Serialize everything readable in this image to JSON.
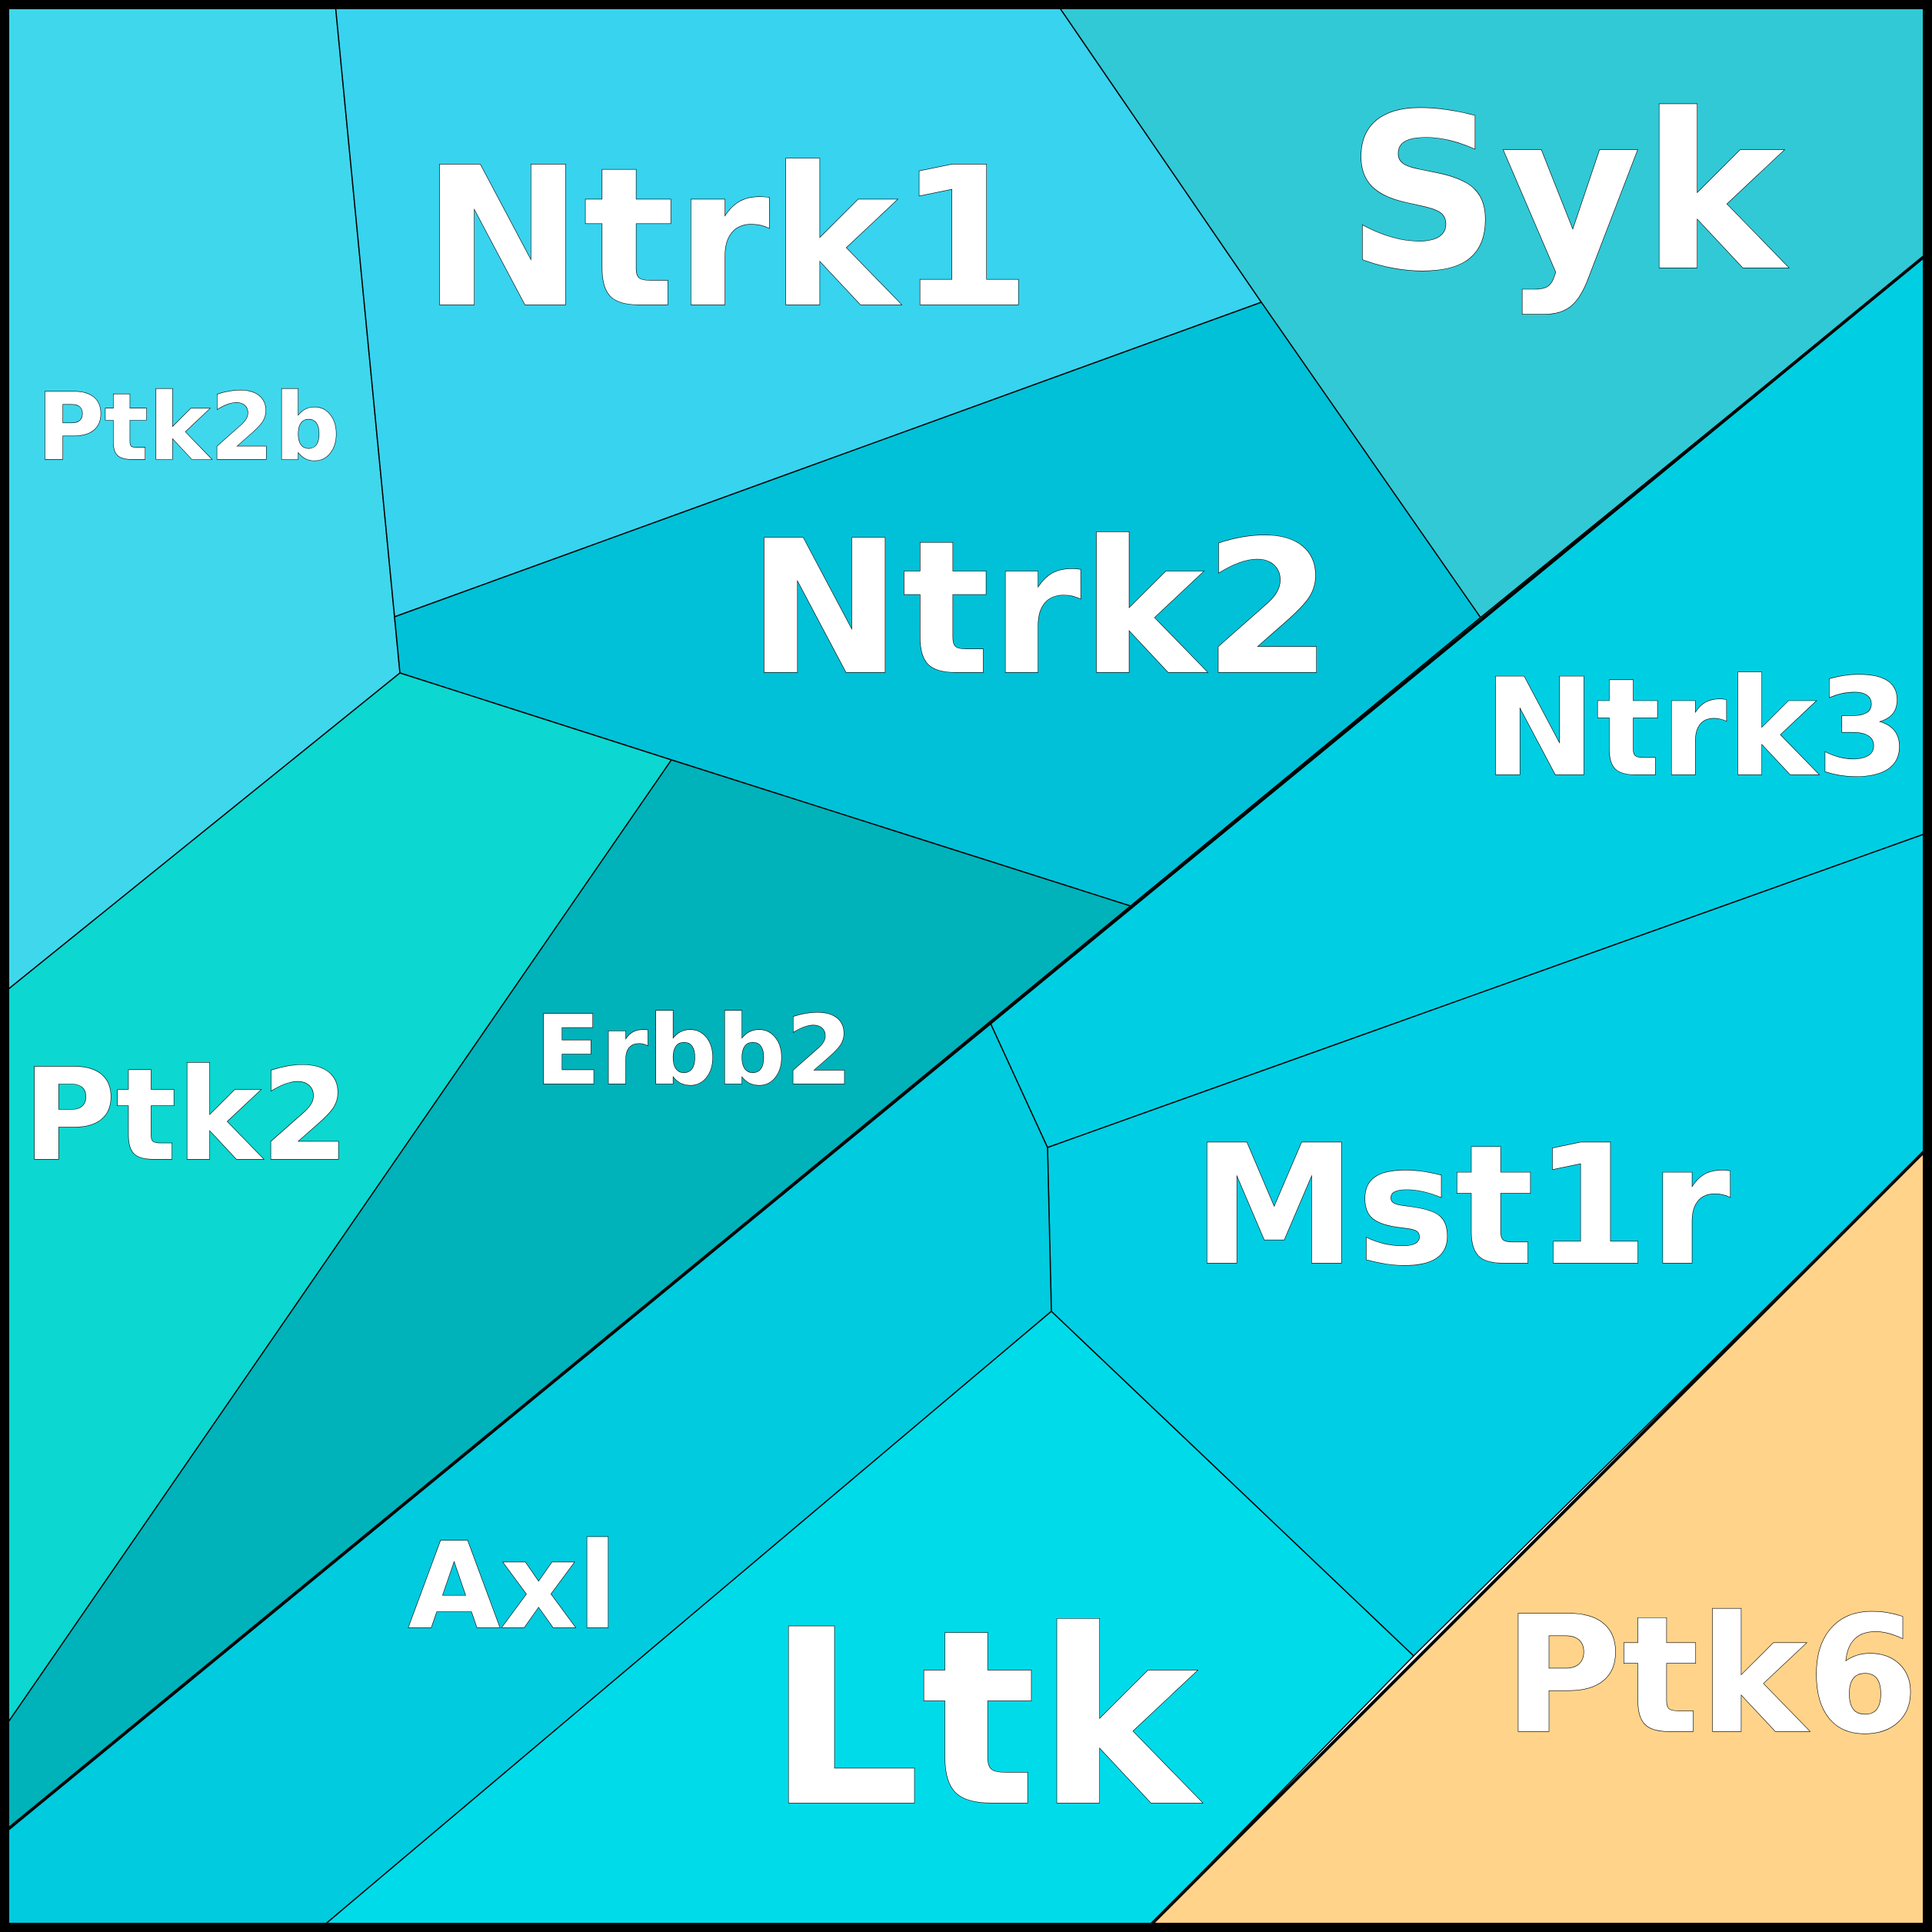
{
  "cells": [
    {
      "label": "Ptk2b",
      "color": "#3FD7EC"
    },
    {
      "label": "Ntrk1",
      "color": "#38D3EE"
    },
    {
      "label": "Syk",
      "color": "#31C9D6"
    },
    {
      "label": "Ntrk2",
      "color": "#00C1D7"
    },
    {
      "label": "Ntrk3",
      "color": "#00CFE3"
    },
    {
      "label": "Ptk2",
      "color": "#0CD7D0"
    },
    {
      "label": "Erbb2",
      "color": "#00B2BA"
    },
    {
      "label": "Mst1r",
      "color": "#00CEE4"
    },
    {
      "label": "Axl",
      "color": "#00CBDF"
    },
    {
      "label": "Ltk",
      "color": "#00DBEA"
    },
    {
      "label": "Ptk6",
      "color": "#FFD38A"
    }
  ]
}
